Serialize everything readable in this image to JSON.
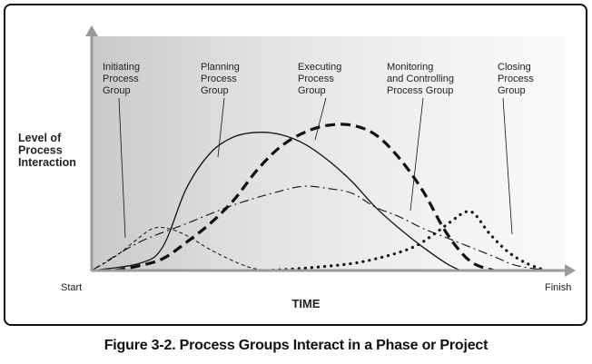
{
  "chart_data": {
    "type": "line",
    "ylabel": [
      "Level of",
      "Process",
      "Interaction"
    ],
    "xlabel": "TIME",
    "x_start_label": "Start",
    "x_end_label": "Finish",
    "xlim": [
      0,
      100
    ],
    "ylim": [
      0,
      100
    ],
    "grid": false,
    "background": "gradient-gray",
    "series": [
      {
        "key": "initiating",
        "name": [
          "Initiating",
          "Process",
          "Group"
        ],
        "style": "dashed-fine",
        "x": [
          0,
          5,
          10,
          13,
          16,
          20,
          25,
          30,
          34,
          38
        ],
        "y": [
          0,
          6,
          14,
          18,
          18,
          15,
          9,
          4,
          1,
          0
        ]
      },
      {
        "key": "planning",
        "name": [
          "Planning",
          "Process",
          "Group"
        ],
        "style": "solid",
        "x": [
          0,
          10,
          15,
          20,
          25,
          30,
          35,
          40,
          45,
          50,
          55,
          60,
          65,
          70,
          75,
          78
        ],
        "y": [
          0,
          3,
          10,
          35,
          50,
          57,
          59,
          58,
          54,
          47,
          38,
          27,
          18,
          10,
          3,
          0
        ]
      },
      {
        "key": "executing",
        "name": [
          "Executing",
          "Process",
          "Group"
        ],
        "style": "dashed-bold",
        "x": [
          5,
          10,
          15,
          20,
          25,
          30,
          35,
          40,
          45,
          50,
          55,
          60,
          65,
          70,
          75,
          80,
          85
        ],
        "y": [
          0,
          2,
          5,
          12,
          20,
          30,
          43,
          53,
          59,
          62,
          62,
          58,
          48,
          34,
          16,
          4,
          0
        ]
      },
      {
        "key": "monitoring",
        "name": [
          "Monitoring",
          "and Controlling",
          "Process Group"
        ],
        "style": "dash-dot",
        "x": [
          0,
          10,
          20,
          30,
          40,
          45,
          50,
          55,
          60,
          65,
          70,
          75,
          80,
          85,
          90,
          97
        ],
        "y": [
          0,
          12,
          20,
          28,
          34,
          36,
          35,
          33,
          27,
          23,
          18,
          14,
          10,
          6,
          2,
          0
        ]
      },
      {
        "key": "closing",
        "name": [
          "Closing",
          "Process",
          "Group"
        ],
        "style": "dotted-bold",
        "x": [
          37,
          45,
          55,
          62,
          68,
          72,
          76,
          79,
          81,
          84,
          88,
          92,
          96
        ],
        "y": [
          0,
          1,
          3,
          6,
          10,
          15,
          21,
          25,
          24,
          16,
          8,
          3,
          0
        ]
      }
    ]
  },
  "caption": "Figure 3-2. Process Groups Interact in a Phase or Project"
}
